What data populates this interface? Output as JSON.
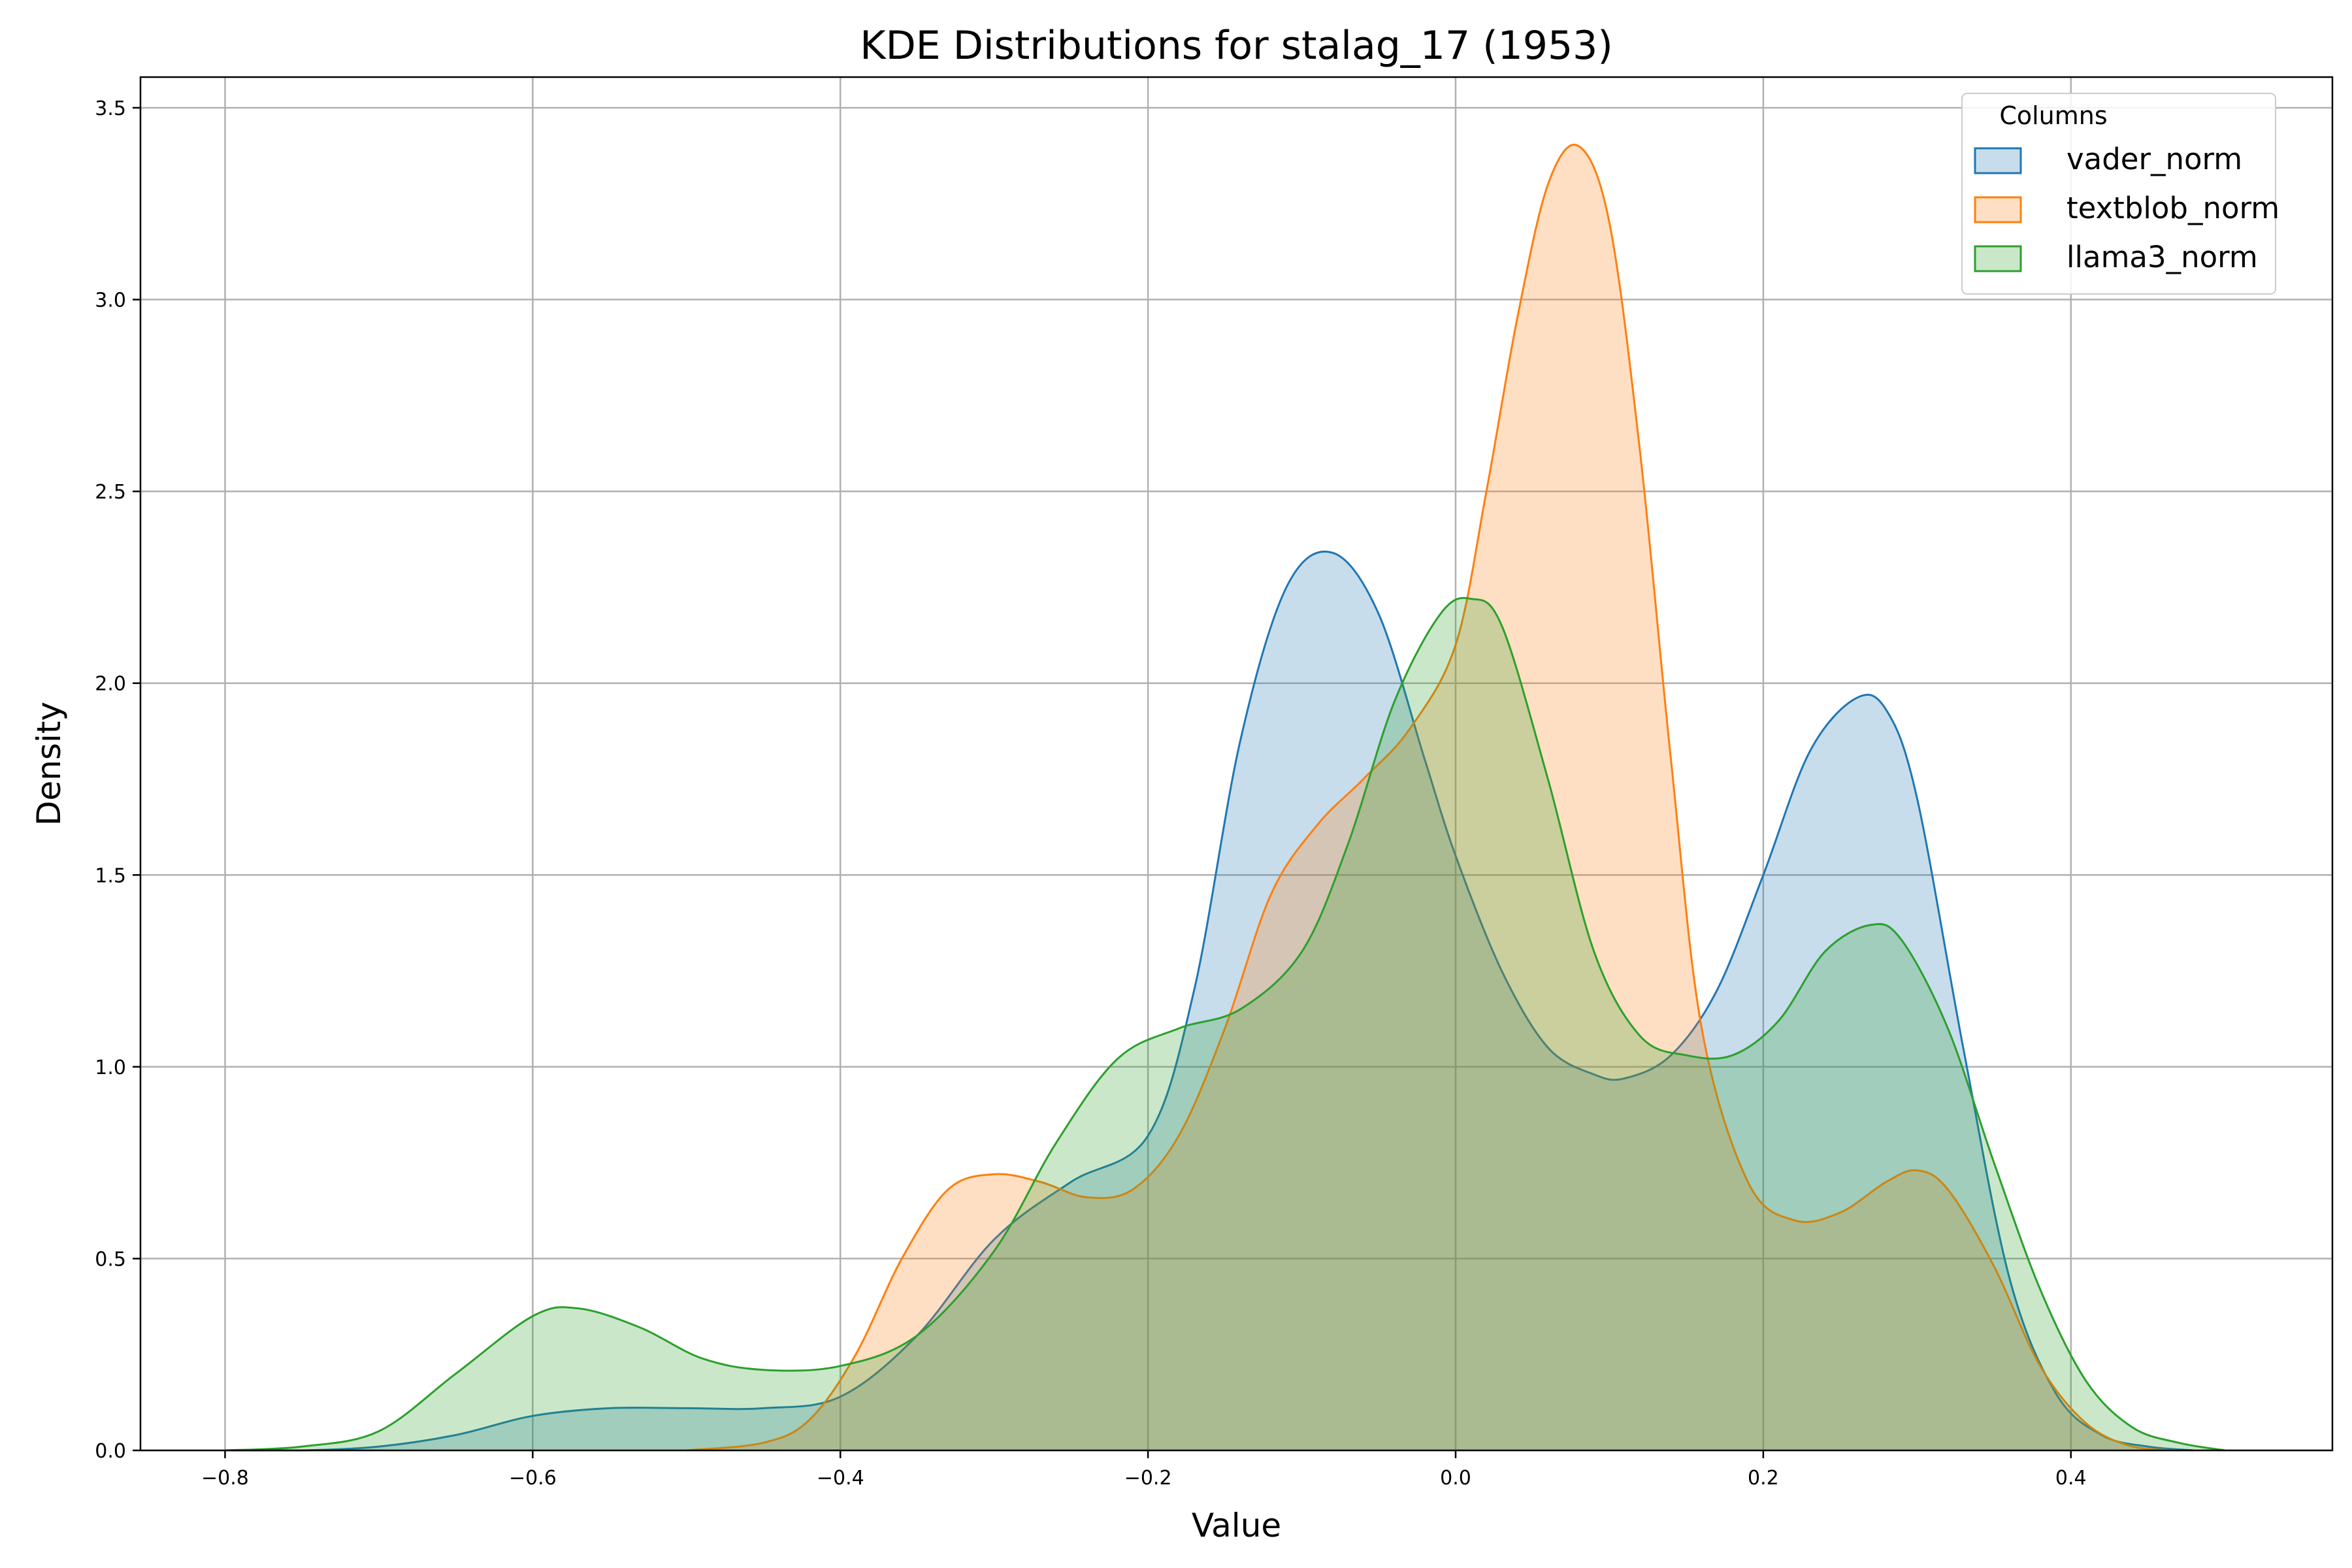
{
  "chart_data": {
    "type": "area",
    "title": "KDE Distributions for stalag_17 (1953)",
    "xlabel": "Value",
    "ylabel": "Density",
    "xlim": [
      -0.855,
      0.57
    ],
    "ylim": [
      0,
      3.58
    ],
    "xticks": [
      -0.8,
      -0.6,
      -0.4,
      -0.2,
      0.0,
      0.2,
      0.4
    ],
    "xtick_labels": [
      "−0.8",
      "−0.6",
      "−0.4",
      "−0.2",
      "0.0",
      "0.2",
      "0.4"
    ],
    "yticks": [
      0.0,
      0.5,
      1.0,
      1.5,
      2.0,
      2.5,
      3.0,
      3.5
    ],
    "ytick_labels": [
      "0.0",
      "0.5",
      "1.0",
      "1.5",
      "2.0",
      "2.5",
      "3.0",
      "3.5"
    ],
    "grid": true,
    "legend": {
      "title": "Columns",
      "position": "top-right"
    },
    "series": [
      {
        "name": "vader_norm",
        "color": "#1f77b4",
        "points": [
          [
            -0.8,
            0.0
          ],
          [
            -0.75,
            0.0
          ],
          [
            -0.7,
            0.01
          ],
          [
            -0.65,
            0.04
          ],
          [
            -0.6,
            0.09
          ],
          [
            -0.55,
            0.11
          ],
          [
            -0.5,
            0.11
          ],
          [
            -0.45,
            0.11
          ],
          [
            -0.4,
            0.14
          ],
          [
            -0.35,
            0.3
          ],
          [
            -0.3,
            0.55
          ],
          [
            -0.25,
            0.7
          ],
          [
            -0.2,
            0.82
          ],
          [
            -0.17,
            1.2
          ],
          [
            -0.14,
            1.85
          ],
          [
            -0.11,
            2.25
          ],
          [
            -0.08,
            2.34
          ],
          [
            -0.05,
            2.18
          ],
          [
            -0.02,
            1.8
          ],
          [
            0.0,
            1.55
          ],
          [
            0.03,
            1.25
          ],
          [
            0.06,
            1.05
          ],
          [
            0.09,
            0.98
          ],
          [
            0.11,
            0.97
          ],
          [
            0.14,
            1.03
          ],
          [
            0.17,
            1.2
          ],
          [
            0.2,
            1.5
          ],
          [
            0.23,
            1.82
          ],
          [
            0.26,
            1.96
          ],
          [
            0.28,
            1.93
          ],
          [
            0.3,
            1.7
          ],
          [
            0.33,
            1.05
          ],
          [
            0.36,
            0.45
          ],
          [
            0.39,
            0.15
          ],
          [
            0.42,
            0.04
          ],
          [
            0.45,
            0.01
          ],
          [
            0.48,
            0.0
          ]
        ]
      },
      {
        "name": "textblob_norm",
        "color": "#ff7f0e",
        "points": [
          [
            -0.5,
            0.0
          ],
          [
            -0.45,
            0.02
          ],
          [
            -0.42,
            0.08
          ],
          [
            -0.39,
            0.25
          ],
          [
            -0.36,
            0.5
          ],
          [
            -0.33,
            0.68
          ],
          [
            -0.3,
            0.72
          ],
          [
            -0.27,
            0.7
          ],
          [
            -0.24,
            0.66
          ],
          [
            -0.21,
            0.68
          ],
          [
            -0.18,
            0.82
          ],
          [
            -0.15,
            1.1
          ],
          [
            -0.12,
            1.45
          ],
          [
            -0.09,
            1.63
          ],
          [
            -0.06,
            1.75
          ],
          [
            -0.03,
            1.88
          ],
          [
            0.0,
            2.1
          ],
          [
            0.02,
            2.5
          ],
          [
            0.04,
            2.95
          ],
          [
            0.06,
            3.3
          ],
          [
            0.08,
            3.4
          ],
          [
            0.1,
            3.2
          ],
          [
            0.12,
            2.6
          ],
          [
            0.14,
            1.8
          ],
          [
            0.16,
            1.1
          ],
          [
            0.19,
            0.7
          ],
          [
            0.22,
            0.6
          ],
          [
            0.25,
            0.62
          ],
          [
            0.28,
            0.7
          ],
          [
            0.3,
            0.73
          ],
          [
            0.32,
            0.68
          ],
          [
            0.35,
            0.48
          ],
          [
            0.38,
            0.22
          ],
          [
            0.41,
            0.07
          ],
          [
            0.44,
            0.01
          ],
          [
            0.47,
            0.0
          ]
        ]
      },
      {
        "name": "llama3_norm",
        "color": "#2ca02c",
        "points": [
          [
            -0.8,
            0.0
          ],
          [
            -0.75,
            0.01
          ],
          [
            -0.7,
            0.05
          ],
          [
            -0.65,
            0.2
          ],
          [
            -0.6,
            0.35
          ],
          [
            -0.57,
            0.37
          ],
          [
            -0.53,
            0.32
          ],
          [
            -0.49,
            0.24
          ],
          [
            -0.45,
            0.21
          ],
          [
            -0.4,
            0.22
          ],
          [
            -0.35,
            0.3
          ],
          [
            -0.3,
            0.52
          ],
          [
            -0.26,
            0.8
          ],
          [
            -0.22,
            1.02
          ],
          [
            -0.18,
            1.1
          ],
          [
            -0.14,
            1.15
          ],
          [
            -0.1,
            1.3
          ],
          [
            -0.07,
            1.58
          ],
          [
            -0.04,
            1.95
          ],
          [
            -0.01,
            2.18
          ],
          [
            0.01,
            2.22
          ],
          [
            0.03,
            2.15
          ],
          [
            0.06,
            1.75
          ],
          [
            0.09,
            1.3
          ],
          [
            0.12,
            1.08
          ],
          [
            0.15,
            1.03
          ],
          [
            0.18,
            1.03
          ],
          [
            0.21,
            1.12
          ],
          [
            0.24,
            1.3
          ],
          [
            0.27,
            1.37
          ],
          [
            0.29,
            1.33
          ],
          [
            0.32,
            1.1
          ],
          [
            0.35,
            0.75
          ],
          [
            0.38,
            0.42
          ],
          [
            0.41,
            0.18
          ],
          [
            0.44,
            0.06
          ],
          [
            0.47,
            0.02
          ],
          [
            0.5,
            0.0
          ]
        ]
      }
    ]
  }
}
